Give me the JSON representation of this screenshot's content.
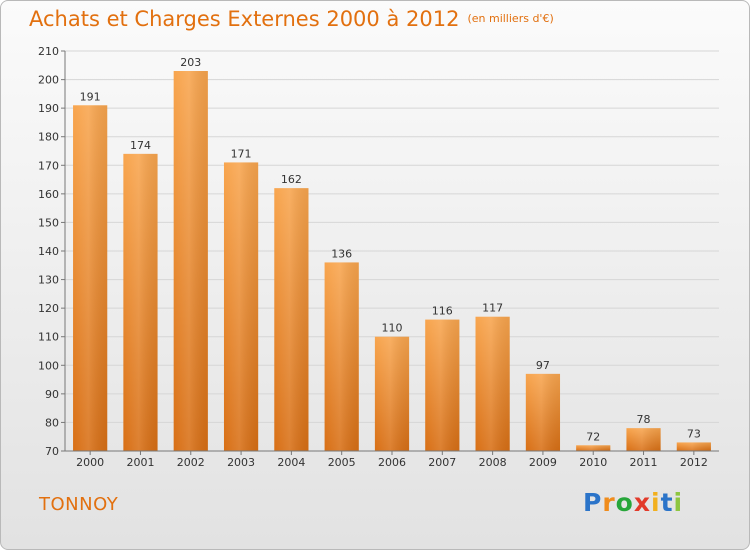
{
  "header": {
    "title": "Achats et Charges Externes 2000 à 2012",
    "unit": "(en milliers d'€)"
  },
  "footer": {
    "commune": "TONNOY",
    "logo_letters": [
      "P",
      "r",
      "o",
      "x",
      "i",
      "t",
      "i"
    ],
    "logo_colors": [
      "#2b74c9",
      "#f08c1c",
      "#27a63a",
      "#e23a2a",
      "#f2b01e",
      "#2b74c9",
      "#8ec641"
    ]
  },
  "colors": {
    "accent": "#e2700f",
    "bar_top": "#f8a54e",
    "bar_bottom": "#d86f15"
  },
  "chart_data": {
    "type": "bar",
    "title": "Achats et Charges Externes 2000 à 2012",
    "subtitle": "(en milliers d'€)",
    "categories": [
      "2000",
      "2001",
      "2002",
      "2003",
      "2004",
      "2005",
      "2006",
      "2007",
      "2008",
      "2009",
      "2010",
      "2011",
      "2012"
    ],
    "values": [
      191,
      174,
      203,
      171,
      162,
      136,
      110,
      116,
      117,
      97,
      72,
      78,
      73
    ],
    "ylim": [
      70,
      210
    ],
    "yticks": [
      70,
      80,
      90,
      100,
      110,
      120,
      130,
      140,
      150,
      160,
      170,
      180,
      190,
      200,
      210
    ],
    "grid": true,
    "xlabel": "",
    "ylabel": ""
  }
}
